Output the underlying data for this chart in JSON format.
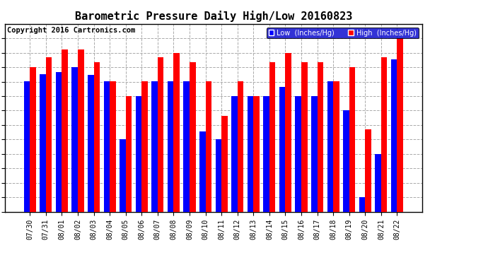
{
  "title": "Barometric Pressure Daily High/Low 20160823",
  "copyright": "Copyright 2016 Cartronics.com",
  "legend_low": "Low  (Inches/Hg)",
  "legend_high": "High  (Inches/Hg)",
  "dates": [
    "07/30",
    "07/31",
    "08/01",
    "08/02",
    "08/03",
    "08/04",
    "08/05",
    "08/06",
    "08/07",
    "08/08",
    "08/09",
    "08/10",
    "08/11",
    "08/12",
    "08/13",
    "08/14",
    "08/15",
    "08/16",
    "08/17",
    "08/18",
    "08/19",
    "08/20",
    "08/21",
    "08/22"
  ],
  "low_values": [
    29.862,
    29.891,
    29.9,
    29.92,
    29.89,
    29.862,
    29.631,
    29.803,
    29.862,
    29.862,
    29.862,
    29.66,
    29.629,
    29.803,
    29.803,
    29.803,
    29.84,
    29.803,
    29.803,
    29.862,
    29.745,
    29.396,
    29.57,
    29.95
  ],
  "high_values": [
    29.92,
    29.96,
    29.99,
    29.99,
    29.94,
    29.862,
    29.803,
    29.862,
    29.96,
    29.978,
    29.94,
    29.862,
    29.725,
    29.862,
    29.803,
    29.94,
    29.978,
    29.94,
    29.94,
    29.862,
    29.92,
    29.67,
    29.96,
    30.036
  ],
  "ylim_low": 29.337,
  "ylim_high": 30.094,
  "yticks": [
    29.337,
    29.396,
    29.454,
    29.512,
    29.57,
    29.629,
    29.687,
    29.745,
    29.803,
    29.861,
    29.92,
    29.978,
    30.036
  ],
  "low_color": "#0000ff",
  "high_color": "#ff0000",
  "bg_color": "#ffffff",
  "plot_bg_color": "#ffffff",
  "grid_color": "#aaaaaa",
  "title_fontsize": 11,
  "copyright_fontsize": 7.5
}
